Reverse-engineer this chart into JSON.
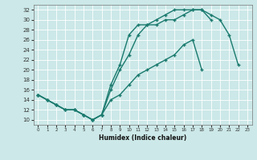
{
  "xlabel": "Humidex (Indice chaleur)",
  "bg_color": "#cce8e8",
  "line_color": "#1a7a6e",
  "line1_x": [
    0,
    1,
    2,
    3,
    4,
    5,
    6,
    7,
    8,
    9,
    10,
    11,
    12,
    13,
    14,
    15,
    16,
    17,
    18,
    19,
    20,
    21,
    22
  ],
  "line1_y": [
    15,
    14,
    13,
    12,
    12,
    11,
    10,
    11,
    16,
    20,
    23,
    27,
    29,
    29,
    30,
    30,
    31,
    32,
    32,
    31,
    30,
    27,
    21
  ],
  "line2_x": [
    0,
    1,
    2,
    3,
    4,
    5,
    6,
    7,
    8,
    9,
    10,
    11,
    12,
    13,
    14,
    15,
    16,
    17,
    18,
    19
  ],
  "line2_y": [
    15,
    14,
    13,
    12,
    12,
    11,
    10,
    11,
    17,
    21,
    27,
    29,
    29,
    30,
    31,
    32,
    32,
    32,
    32,
    30
  ],
  "line3_x": [
    0,
    1,
    2,
    3,
    4,
    5,
    6,
    7,
    8,
    9,
    10,
    11,
    12,
    13,
    14,
    15,
    16,
    17,
    18
  ],
  "line3_y": [
    15,
    14,
    13,
    12,
    12,
    11,
    10,
    11,
    14,
    15,
    17,
    19,
    20,
    21,
    22,
    23,
    25,
    26,
    20
  ],
  "xlim": [
    -0.5,
    23.5
  ],
  "ylim": [
    9,
    33
  ],
  "xticks": [
    0,
    1,
    2,
    3,
    4,
    5,
    6,
    7,
    8,
    9,
    10,
    11,
    12,
    13,
    14,
    15,
    16,
    17,
    18,
    19,
    20,
    21,
    22,
    23
  ],
  "yticks": [
    10,
    12,
    14,
    16,
    18,
    20,
    22,
    24,
    26,
    28,
    30,
    32
  ]
}
